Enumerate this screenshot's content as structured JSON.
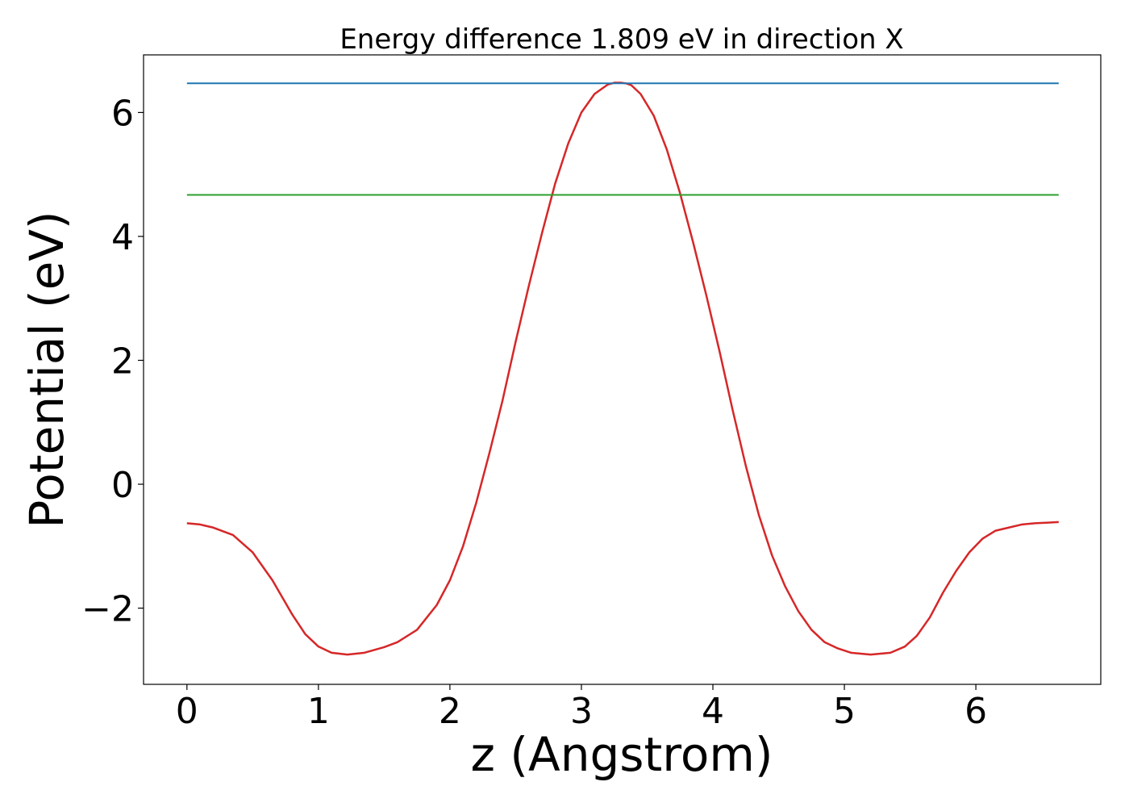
{
  "chart_data": {
    "type": "line",
    "title": "Energy difference 1.809 eV in direction X",
    "xlabel": "z (Angstrom)",
    "ylabel": "Potential (eV)",
    "xlim": [
      -0.33,
      6.95
    ],
    "ylim": [
      -3.23,
      6.93
    ],
    "xticks": [
      0,
      1,
      2,
      3,
      4,
      5,
      6
    ],
    "xtick_labels": [
      "0",
      "1",
      "2",
      "3",
      "4",
      "5",
      "6"
    ],
    "yticks": [
      -2,
      0,
      2,
      4,
      6
    ],
    "ytick_labels": [
      "−2",
      "0",
      "2",
      "4",
      "6"
    ],
    "grid": false,
    "series": [
      {
        "color": "#d62728",
        "x": [
          0,
          0.1,
          0.2,
          0.35,
          0.5,
          0.65,
          0.8,
          0.9,
          1.0,
          1.1,
          1.22,
          1.35,
          1.5,
          1.6,
          1.75,
          1.9,
          2.0,
          2.1,
          2.2,
          2.3,
          2.4,
          2.5,
          2.6,
          2.7,
          2.8,
          2.9,
          3.0,
          3.1,
          3.2,
          3.25,
          3.3,
          3.34,
          3.38,
          3.45,
          3.55,
          3.65,
          3.75,
          3.85,
          3.95,
          4.05,
          4.15,
          4.25,
          4.35,
          4.45,
          4.55,
          4.65,
          4.75,
          4.85,
          4.95,
          5.05,
          5.2,
          5.35,
          5.46,
          5.55,
          5.65,
          5.75,
          5.85,
          5.95,
          6.05,
          6.15,
          6.25,
          6.35,
          6.45,
          6.55,
          6.63
        ],
        "y": [
          -0.63,
          -0.65,
          -0.7,
          -0.82,
          -1.1,
          -1.55,
          -2.1,
          -2.42,
          -2.62,
          -2.72,
          -2.75,
          -2.72,
          -2.63,
          -2.55,
          -2.35,
          -1.95,
          -1.55,
          -1.0,
          -0.3,
          0.5,
          1.35,
          2.3,
          3.2,
          4.05,
          4.85,
          5.5,
          6.0,
          6.3,
          6.45,
          6.48,
          6.48,
          6.47,
          6.44,
          6.3,
          5.95,
          5.4,
          4.7,
          3.9,
          3.05,
          2.15,
          1.2,
          0.3,
          -0.5,
          -1.15,
          -1.65,
          -2.05,
          -2.35,
          -2.55,
          -2.65,
          -2.72,
          -2.75,
          -2.72,
          -2.62,
          -2.45,
          -2.15,
          -1.75,
          -1.4,
          -1.1,
          -0.88,
          -0.75,
          -0.7,
          -0.65,
          -0.63,
          -0.62,
          -0.61
        ]
      },
      {
        "color": "#1f77b4",
        "x": [
          0,
          6.63
        ],
        "y": [
          6.47,
          6.47
        ]
      },
      {
        "color": "#2ca02c",
        "x": [
          0,
          6.63
        ],
        "y": [
          4.67,
          4.67
        ]
      }
    ]
  }
}
